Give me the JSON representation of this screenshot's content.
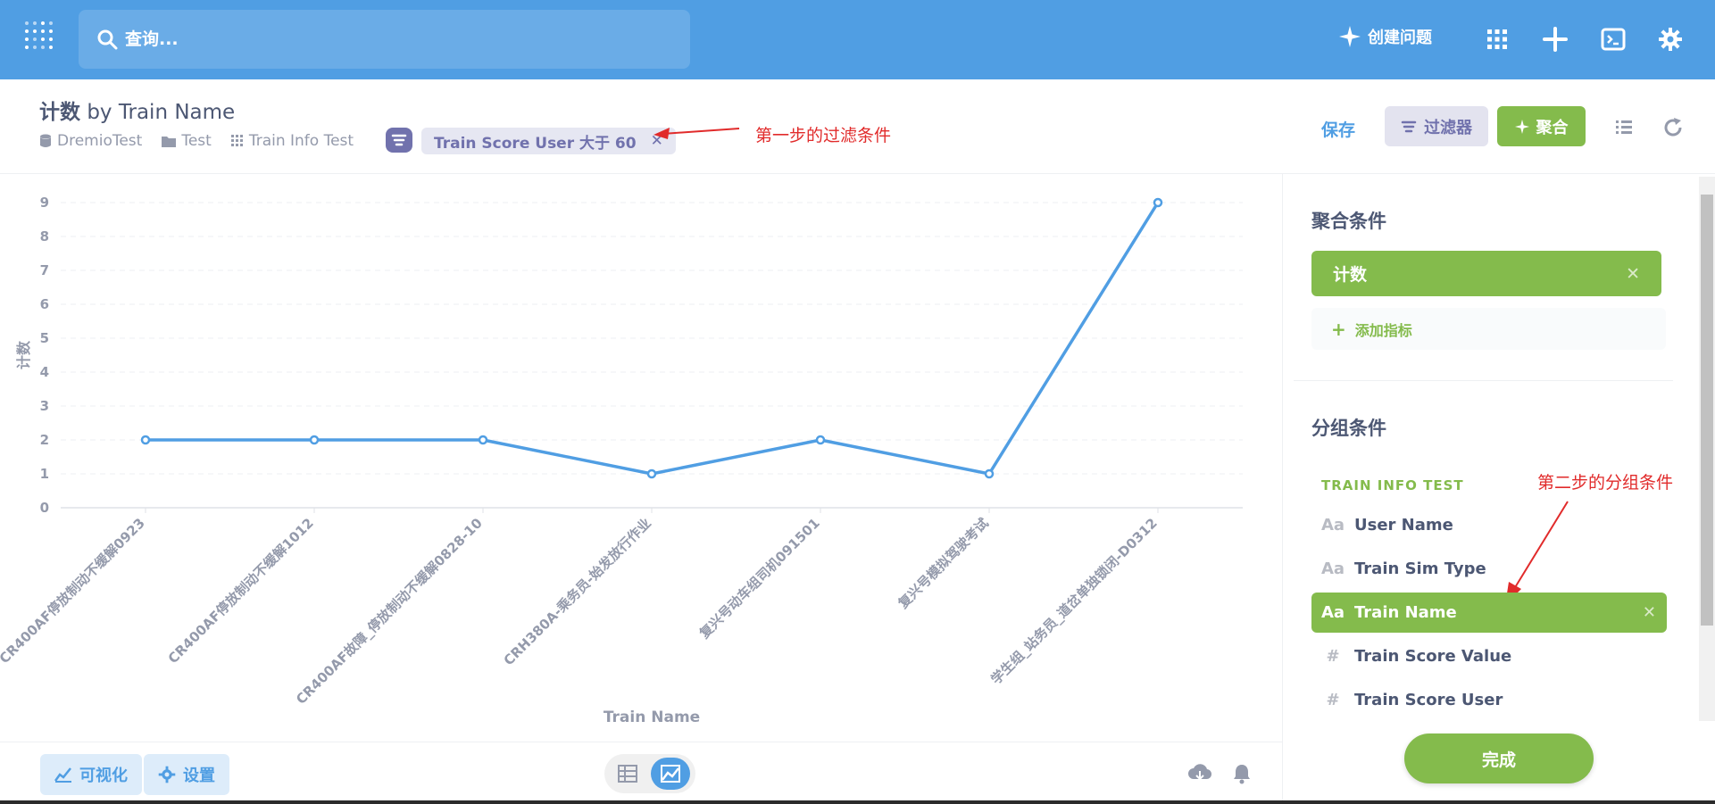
{
  "search": {
    "placeholder": "查询..."
  },
  "topbar": {
    "create_question": "创建问题"
  },
  "header": {
    "title_prefix": "计数",
    "title_suffix": "by Train Name",
    "breadcrumbs": [
      "DremioTest",
      "Test",
      "Train Info Test"
    ],
    "filter_label": "Train Score User 大于 60",
    "annotation_filter": "第一步的过滤条件",
    "save": "保存",
    "filter_btn": "过滤器",
    "agg_btn": "聚合"
  },
  "sidebar": {
    "metrics_title": "聚合条件",
    "metric": "计数",
    "add_metric": "添加指标",
    "groups_title": "分组条件",
    "group_table": "TRAIN INFO TEST",
    "annotation_group": "第二步的分组条件",
    "fields": [
      {
        "icon": "Aa",
        "label": "User Name"
      },
      {
        "icon": "Aa",
        "label": "Train Sim Type"
      },
      {
        "icon": "Aa",
        "label": "Train Name"
      },
      {
        "icon": "#",
        "label": "Train Score Value"
      },
      {
        "icon": "#",
        "label": "Train Score User"
      }
    ],
    "done": "完成"
  },
  "footer": {
    "visualize": "可视化",
    "settings": "设置"
  },
  "chart_data": {
    "type": "line",
    "title": "",
    "xlabel": "Train Name",
    "ylabel": "计数",
    "categories": [
      "CR400AF停放制动不缓解0923",
      "CR400AF停放制动不缓解1012",
      "CR400AF故障_停放制动不缓解0828-10",
      "CRH380A-乘务员-始发放行作业",
      "复兴号动车组司机091501",
      "复兴号模拟驾驶考试",
      "学生组_站务员_道岔单独锁闭-D0312"
    ],
    "values": [
      2,
      2,
      2,
      1,
      2,
      1,
      9
    ],
    "ylim": [
      0,
      9
    ],
    "yticks": [
      0,
      1,
      2,
      3,
      4,
      5,
      6,
      7,
      8,
      9
    ],
    "color": "#509ee3",
    "grid": true
  }
}
